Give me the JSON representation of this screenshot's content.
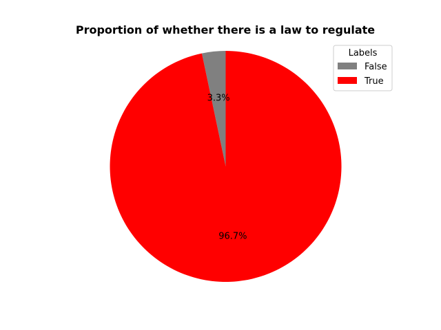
{
  "chart_data": {
    "type": "pie",
    "title": "Proportion of whether there is a law to regulate",
    "categories": [
      "False",
      "True"
    ],
    "values": [
      3.3,
      96.7
    ],
    "value_labels": [
      "3.3%",
      "96.7%"
    ],
    "colors": [
      "#808080",
      "#ff0000"
    ],
    "start_angle_deg": 90,
    "direction": "counterclockwise",
    "legend": {
      "title": "Labels",
      "placement": "top-right",
      "entries": [
        "False",
        "True"
      ]
    }
  }
}
